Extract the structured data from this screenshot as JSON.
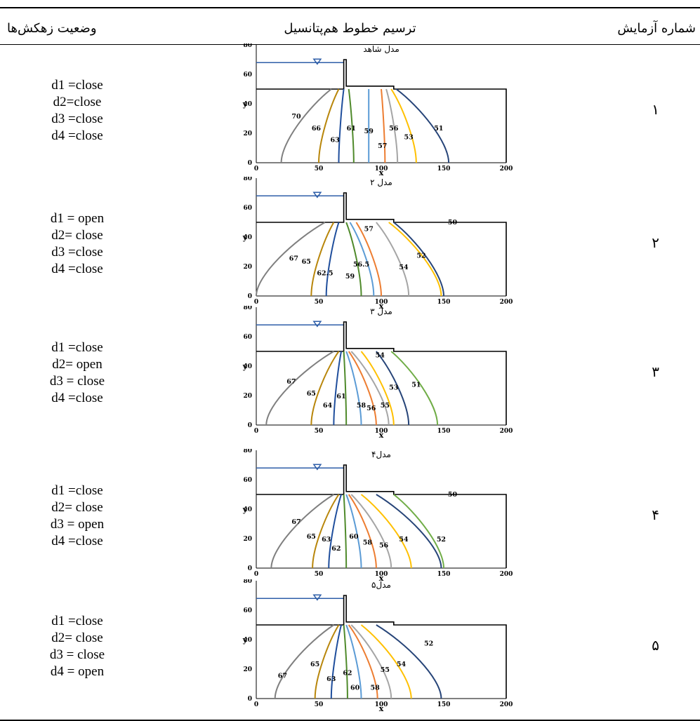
{
  "table": {
    "headers": {
      "trial_number": "شماره آزمایش",
      "equipotential": "ترسیم خطوط هم‌پتانسیل",
      "drain_status": "وضعیت زهکش‌ها"
    },
    "rows": [
      {
        "num": "۱",
        "title": "مدل شاهد",
        "drains": [
          "d1 =close",
          "d2=close",
          "d3 =close",
          "d4 =close"
        ],
        "labels": [
          "70",
          "66",
          "63",
          "61",
          "59",
          "57",
          "56",
          "53",
          "51"
        ],
        "extra": ""
      },
      {
        "num": "۲",
        "title": "مدل ۲",
        "drains": [
          "d1 = open",
          "d2= close",
          "d3 =close",
          "d4 =close"
        ],
        "labels": [
          "67",
          "65",
          "62.5",
          "59",
          "56.5",
          "57",
          "54",
          "52"
        ],
        "extra": "50"
      },
      {
        "num": "۳",
        "title": "مدل ۳",
        "drains": [
          "d1 =close",
          "d2= open",
          "d3 = close",
          "d4 =close"
        ],
        "labels": [
          "67",
          "65",
          "64",
          "61",
          "58",
          "56",
          "55",
          "54",
          "53",
          "51"
        ],
        "extra": ""
      },
      {
        "num": "۴",
        "title": "مدل۴",
        "drains": [
          "d1 =close",
          "d2= close",
          "d3 = open",
          "d4 =close"
        ],
        "labels": [
          "67",
          "65",
          "63",
          "62",
          "60",
          "58",
          "56",
          "54",
          "52"
        ],
        "extra": "50"
      },
      {
        "num": "۵",
        "title": "مدل۵",
        "drains": [
          "d1 =close",
          "d2= close",
          "d3 = close",
          "d4 = open"
        ],
        "labels": [
          "67",
          "65",
          "63",
          "62",
          "60",
          "58",
          "55",
          "54",
          "52"
        ],
        "extra": ""
      }
    ]
  },
  "chart_data": [
    {
      "type": "line",
      "title": "مدل شاهد",
      "xlabel": "x",
      "ylabel": "y",
      "xlim": [
        0,
        200
      ],
      "ylim": [
        0,
        80
      ],
      "x_ticks": [
        "0",
        "50",
        "100",
        "150",
        "200"
      ],
      "y_ticks": [
        "0",
        "20",
        "40",
        "60",
        "80"
      ],
      "series": [
        {
          "name": "70"
        },
        {
          "name": "66"
        },
        {
          "name": "63"
        },
        {
          "name": "61"
        },
        {
          "name": "59"
        },
        {
          "name": "57"
        },
        {
          "name": "56"
        },
        {
          "name": "53"
        },
        {
          "name": "51"
        }
      ]
    },
    {
      "type": "line",
      "title": "مدل ۲",
      "xlabel": "x",
      "ylabel": "y",
      "xlim": [
        0,
        200
      ],
      "ylim": [
        0,
        80
      ],
      "x_ticks": [
        "0",
        "50",
        "100",
        "150",
        "200"
      ],
      "y_ticks": [
        "0",
        "20",
        "40",
        "60",
        "80"
      ],
      "series": [
        {
          "name": "67"
        },
        {
          "name": "65"
        },
        {
          "name": "62.5"
        },
        {
          "name": "59"
        },
        {
          "name": "56.5"
        },
        {
          "name": "57"
        },
        {
          "name": "54"
        },
        {
          "name": "52"
        },
        {
          "name": "50"
        }
      ]
    },
    {
      "type": "line",
      "title": "مدل ۳",
      "xlabel": "x",
      "ylabel": "y",
      "xlim": [
        0,
        200
      ],
      "ylim": [
        0,
        80
      ],
      "x_ticks": [
        "0",
        "50",
        "100",
        "150",
        "200"
      ],
      "y_ticks": [
        "0",
        "20",
        "40",
        "60",
        "80"
      ],
      "series": [
        {
          "name": "67"
        },
        {
          "name": "65"
        },
        {
          "name": "64"
        },
        {
          "name": "61"
        },
        {
          "name": "58"
        },
        {
          "name": "56"
        },
        {
          "name": "55"
        },
        {
          "name": "54"
        },
        {
          "name": "53"
        },
        {
          "name": "51"
        }
      ]
    },
    {
      "type": "line",
      "title": "مدل۴",
      "xlabel": "x",
      "ylabel": "y",
      "xlim": [
        0,
        200
      ],
      "ylim": [
        0,
        80
      ],
      "x_ticks": [
        "0",
        "50",
        "100",
        "150",
        "200"
      ],
      "y_ticks": [
        "0",
        "20",
        "40",
        "60",
        "80"
      ],
      "series": [
        {
          "name": "67"
        },
        {
          "name": "65"
        },
        {
          "name": "63"
        },
        {
          "name": "62"
        },
        {
          "name": "60"
        },
        {
          "name": "58"
        },
        {
          "name": "56"
        },
        {
          "name": "54"
        },
        {
          "name": "52"
        },
        {
          "name": "50"
        }
      ]
    },
    {
      "type": "line",
      "title": "مدل۵",
      "xlabel": "x",
      "ylabel": "y",
      "xlim": [
        0,
        200
      ],
      "ylim": [
        0,
        80
      ],
      "x_ticks": [
        "0",
        "50",
        "100",
        "150",
        "200"
      ],
      "y_ticks": [
        "0",
        "20",
        "40",
        "60",
        "80"
      ],
      "series": [
        {
          "name": "67"
        },
        {
          "name": "65"
        },
        {
          "name": "63"
        },
        {
          "name": "62"
        },
        {
          "name": "60"
        },
        {
          "name": "58"
        },
        {
          "name": "55"
        },
        {
          "name": "54"
        },
        {
          "name": "52"
        }
      ]
    }
  ],
  "colors": {
    "water": "#2e5ea8",
    "lines": [
      "#7f7f7f",
      "#b8860b",
      "#1f4e9c",
      "#4f8a2b",
      "#5b9bd5",
      "#ed7d31",
      "#a5a5a5",
      "#ffc000",
      "#264478",
      "#70ad47"
    ]
  }
}
